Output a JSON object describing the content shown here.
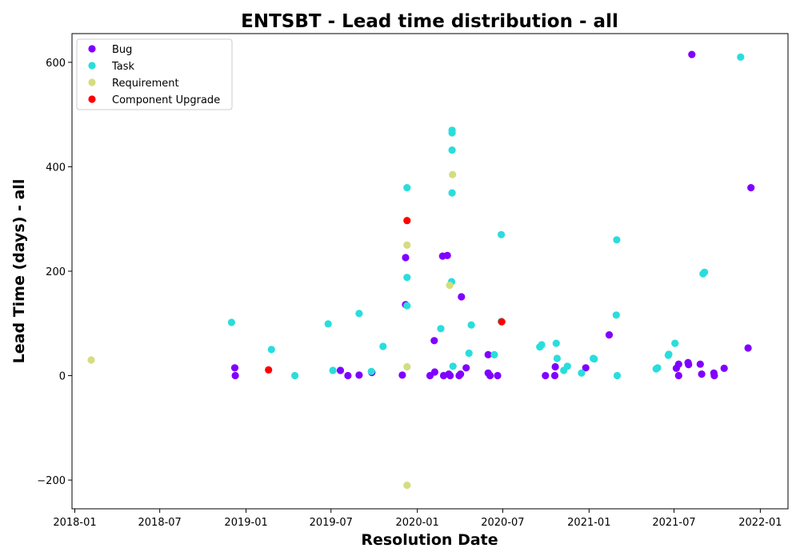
{
  "chart_data": {
    "type": "scatter",
    "title": "ENTSBT - Lead time distribution - all",
    "xlabel": "Resolution Date",
    "ylabel": "Lead Time (days) - all",
    "xlim": [
      "2017-12-26",
      "2022-03-01"
    ],
    "ylim": [
      -255,
      655
    ],
    "x_ticks": [
      "2018-01",
      "2018-07",
      "2019-01",
      "2019-07",
      "2020-01",
      "2020-07",
      "2021-01",
      "2021-07",
      "2022-01"
    ],
    "y_ticks": [
      -200,
      0,
      200,
      400,
      600
    ],
    "grid": false,
    "legend_position": "top-left",
    "series": [
      {
        "name": "Bug",
        "color": "#8000ff",
        "points": [
          [
            "2018-12-08",
            15
          ],
          [
            "2018-12-09",
            0
          ],
          [
            "2019-07-21",
            10
          ],
          [
            "2019-08-06",
            0
          ],
          [
            "2019-08-30",
            1
          ],
          [
            "2019-09-26",
            6
          ],
          [
            "2019-11-30",
            1
          ],
          [
            "2019-12-07",
            136
          ],
          [
            "2019-12-07",
            226
          ],
          [
            "2020-01-28",
            0
          ],
          [
            "2020-02-06",
            67
          ],
          [
            "2020-02-07",
            7
          ],
          [
            "2020-02-24",
            229
          ],
          [
            "2020-02-26",
            0
          ],
          [
            "2020-03-05",
            230
          ],
          [
            "2020-03-08",
            3
          ],
          [
            "2020-03-11",
            0
          ],
          [
            "2020-03-30",
            0
          ],
          [
            "2020-04-02",
            3
          ],
          [
            "2020-04-04",
            151
          ],
          [
            "2020-04-14",
            15
          ],
          [
            "2020-05-31",
            40
          ],
          [
            "2020-05-31",
            5
          ],
          [
            "2020-06-04",
            0
          ],
          [
            "2020-06-20",
            0
          ],
          [
            "2020-09-30",
            0
          ],
          [
            "2020-10-20",
            0
          ],
          [
            "2020-10-21",
            17
          ],
          [
            "2020-12-25",
            15
          ],
          [
            "2021-02-13",
            78
          ],
          [
            "2021-07-06",
            14
          ],
          [
            "2021-07-11",
            22
          ],
          [
            "2021-07-11",
            0
          ],
          [
            "2021-07-31",
            25
          ],
          [
            "2021-08-01",
            21
          ],
          [
            "2021-08-08",
            615
          ],
          [
            "2021-08-26",
            22
          ],
          [
            "2021-08-29",
            3
          ],
          [
            "2021-09-24",
            5
          ],
          [
            "2021-09-25",
            0
          ],
          [
            "2021-10-16",
            14
          ],
          [
            "2021-12-06",
            53
          ],
          [
            "2021-12-12",
            360
          ]
        ]
      },
      {
        "name": "Task",
        "color": "#2adddd",
        "points": [
          [
            "2018-12-01",
            102
          ],
          [
            "2019-02-24",
            50
          ],
          [
            "2019-04-15",
            0
          ],
          [
            "2019-06-25",
            99
          ],
          [
            "2019-07-05",
            10
          ],
          [
            "2019-08-30",
            119
          ],
          [
            "2019-09-25",
            8
          ],
          [
            "2019-10-20",
            56
          ],
          [
            "2019-12-10",
            360
          ],
          [
            "2019-12-10",
            188
          ],
          [
            "2019-12-10",
            134
          ],
          [
            "2020-02-20",
            90
          ],
          [
            "2020-03-15",
            470
          ],
          [
            "2020-03-15",
            465
          ],
          [
            "2020-03-15",
            432
          ],
          [
            "2020-03-15",
            350
          ],
          [
            "2020-03-14",
            180
          ],
          [
            "2020-03-17",
            18
          ],
          [
            "2020-04-20",
            43
          ],
          [
            "2020-04-25",
            97
          ],
          [
            "2020-06-13",
            40
          ],
          [
            "2020-06-28",
            270
          ],
          [
            "2020-06-28",
            104
          ],
          [
            "2020-09-18",
            55
          ],
          [
            "2020-09-22",
            59
          ],
          [
            "2020-10-23",
            62
          ],
          [
            "2020-10-25",
            33
          ],
          [
            "2020-11-08",
            10
          ],
          [
            "2020-11-16",
            18
          ],
          [
            "2020-12-16",
            5
          ],
          [
            "2021-01-10",
            33
          ],
          [
            "2021-01-12",
            32
          ],
          [
            "2021-02-28",
            116
          ],
          [
            "2021-03-01",
            260
          ],
          [
            "2021-03-02",
            0
          ],
          [
            "2021-05-24",
            13
          ],
          [
            "2021-05-27",
            15
          ],
          [
            "2021-06-19",
            39
          ],
          [
            "2021-06-20",
            41
          ],
          [
            "2021-07-03",
            62
          ],
          [
            "2021-09-01",
            195
          ],
          [
            "2021-09-04",
            198
          ],
          [
            "2021-11-20",
            610
          ]
        ]
      },
      {
        "name": "Requirement",
        "color": "#d4dd80",
        "points": [
          [
            "2018-02-05",
            30
          ],
          [
            "2019-12-10",
            250
          ],
          [
            "2019-12-10",
            17
          ],
          [
            "2019-12-10",
            -210
          ],
          [
            "2020-03-10",
            173
          ],
          [
            "2020-03-16",
            385
          ]
        ]
      },
      {
        "name": "Component Upgrade",
        "color": "#ff0000",
        "points": [
          [
            "2019-02-18",
            11
          ],
          [
            "2019-12-10",
            297
          ],
          [
            "2020-06-29",
            103
          ]
        ]
      }
    ]
  }
}
